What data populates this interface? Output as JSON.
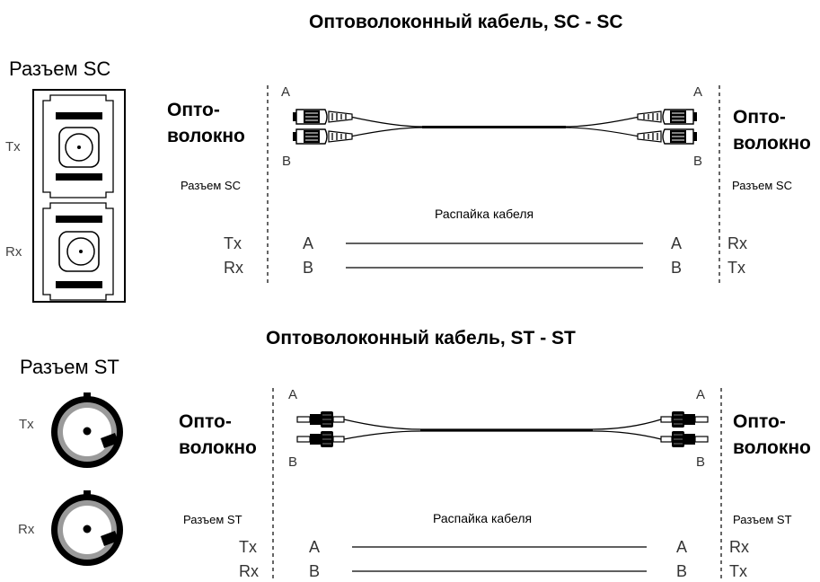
{
  "sc": {
    "title": "Оптоволоконный кабель, SC - SC",
    "connector_header": "Разъем SC",
    "tx": "Tx",
    "rx": "Rx",
    "fiber_left_1": "Опто-",
    "fiber_left_2": "волокно",
    "fiber_right_1": "Опто-",
    "fiber_right_2": "волокно",
    "conn_left": "Разъем SC",
    "conn_right": "Разъем SC",
    "end_a": "A",
    "end_b": "B",
    "pinout_title": "Распайка кабеля",
    "pin_left": [
      "Tx",
      "Rx"
    ],
    "pin_a": "A",
    "pin_b": "B",
    "pin_right": [
      "Rx",
      "Tx"
    ]
  },
  "st": {
    "title": "Оптоволоконный кабель, ST - ST",
    "connector_header": "Разъем ST",
    "tx": "Tx",
    "rx": "Rx",
    "fiber_left_1": "Опто-",
    "fiber_left_2": "волокно",
    "fiber_right_1": "Опто-",
    "fiber_right_2": "волокно",
    "conn_left": "Разъем ST",
    "conn_right": "Разъем ST",
    "end_a": "A",
    "end_b": "B",
    "pinout_title": "Распайка кабеля",
    "pin_left": [
      "Tx",
      "Rx"
    ],
    "pin_a": "A",
    "pin_b": "B",
    "pin_right": [
      "Rx",
      "Tx"
    ]
  },
  "colors": {
    "ink": "#000000",
    "grey": "#909090"
  }
}
